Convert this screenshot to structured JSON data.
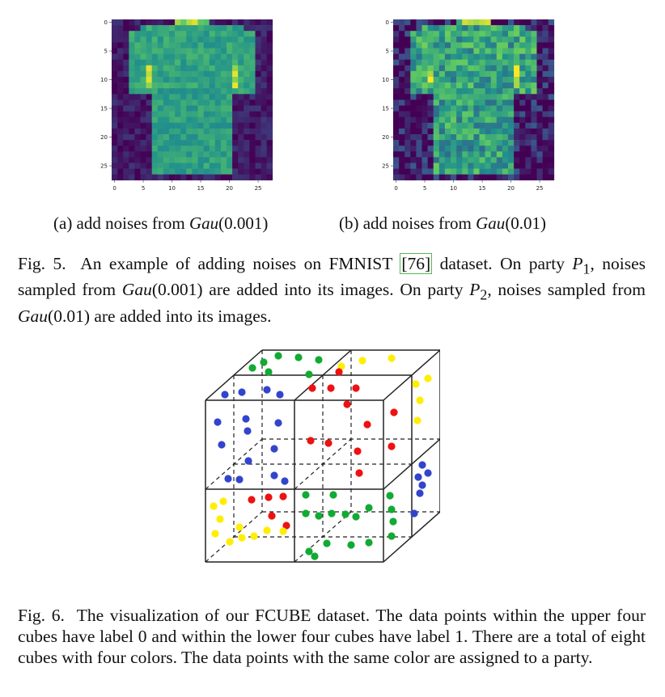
{
  "figure5": {
    "subfig_a": {
      "caption": "(a) add noises from Gau(0.001)",
      "caption_prefix": "(a) add noises from ",
      "caption_math": "Gau",
      "caption_arg": "(0.001)",
      "yticks": [
        "0",
        "5",
        "10",
        "15",
        "20",
        "25"
      ],
      "xticks": [
        "0",
        "5",
        "10",
        "15",
        "20",
        "25"
      ]
    },
    "subfig_b": {
      "caption": "(b) add noises from Gau(0.01)",
      "caption_prefix": "(b) add noises from ",
      "caption_math": "Gau",
      "caption_arg": "(0.01)",
      "yticks": [
        "0",
        "5",
        "10",
        "15",
        "20",
        "25"
      ],
      "xticks": [
        "0",
        "5",
        "10",
        "15",
        "20",
        "25"
      ]
    },
    "caption": {
      "label": "Fig. 5.",
      "part1": "An example of adding noises on FMNIST ",
      "ref": "[76]",
      "part2": " dataset. On party ",
      "p1": "P",
      "p1_sub": "1",
      "part3": ", noises sampled from ",
      "gau1": "Gau",
      "gau1_arg": "(0.001)",
      "part4": " are added into its images. On party ",
      "p2": "P",
      "p2_sub": "2",
      "part5": ", noises sampled from ",
      "gau2": "Gau",
      "gau2_arg": "(0.01)",
      "part6": " are added into its images."
    }
  },
  "figure6": {
    "colors": {
      "blue": "#3344cc",
      "red": "#ee1111",
      "green": "#11aa33",
      "yellow": "#ffee00"
    },
    "caption": {
      "label": "Fig. 6.",
      "text": "The visualization of our FCUBE dataset. The data points within the upper four cubes have label 0 and within the lower four cubes have label 1. There are a total of eight cubes with four colors. The data points with the same color are assigned to a party."
    }
  }
}
